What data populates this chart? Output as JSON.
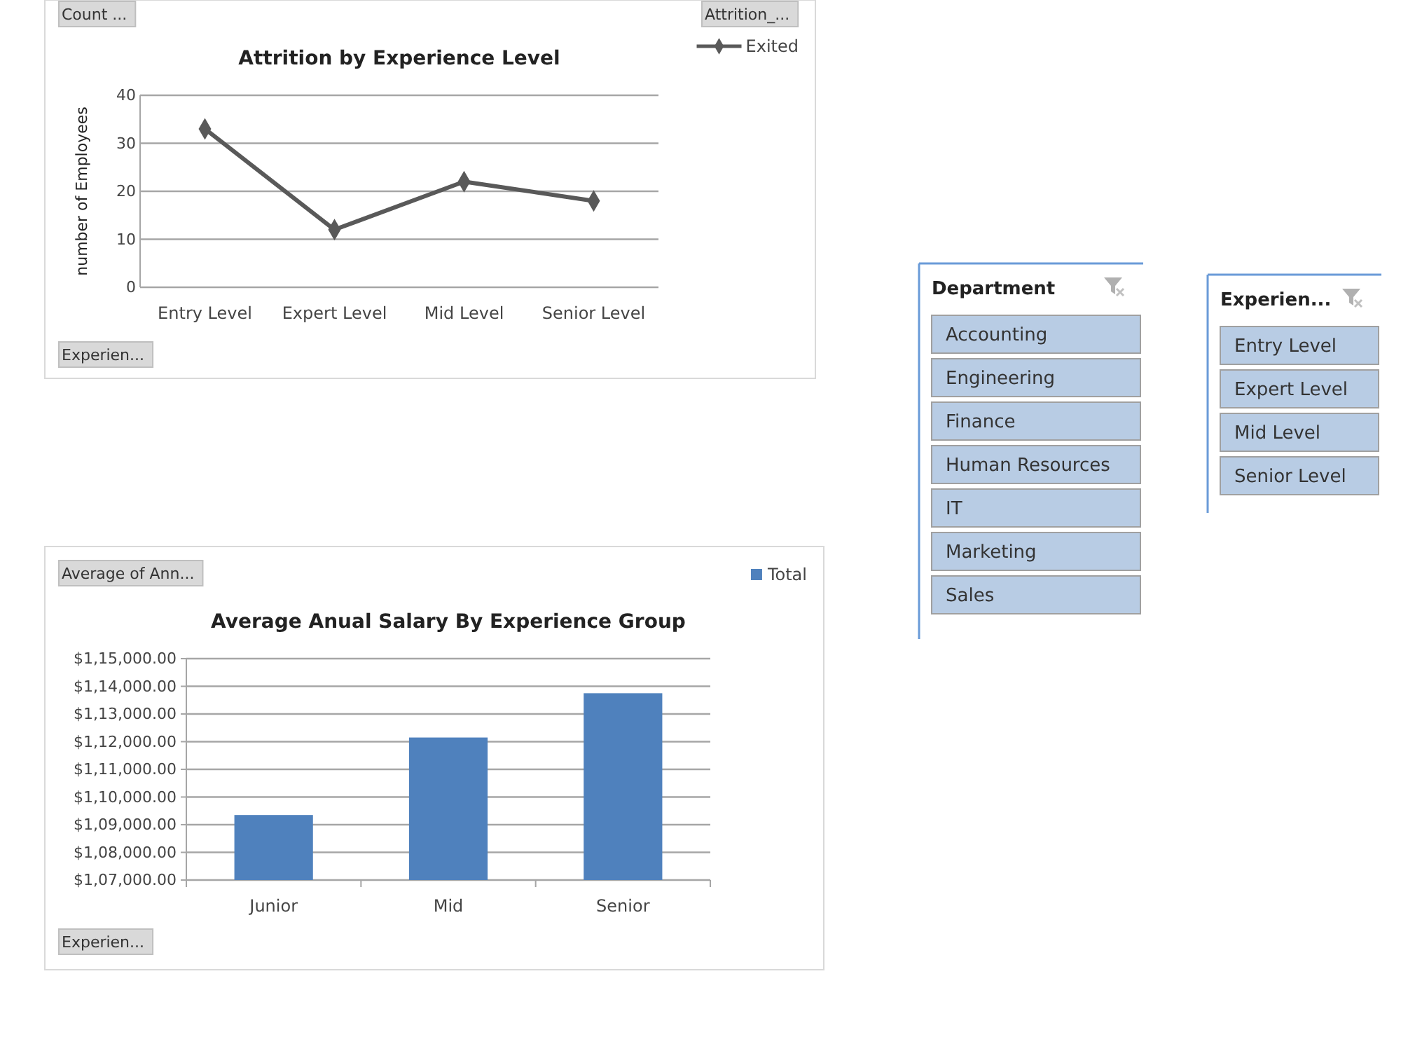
{
  "chart_data": [
    {
      "type": "line",
      "title": "Attrition by Experience Level",
      "ylabel": "number of Employees",
      "categories": [
        "Entry Level",
        "Expert Level",
        "Mid Level",
        "Senior Level"
      ],
      "series": [
        {
          "name": "Exited",
          "color": "#595959",
          "values": [
            33,
            12,
            22,
            18
          ]
        }
      ],
      "ylim": [
        0,
        40
      ],
      "yticks": [
        0,
        10,
        20,
        30,
        40
      ],
      "grid": "y",
      "legend": "top right",
      "marker": "diamond",
      "line_style": "solid",
      "annotations": [
        "Count ...",
        "Attrition_...",
        "Experien..."
      ]
    },
    {
      "type": "bar",
      "title": "Average Anual Salary By Experience Group",
      "categories": [
        "Junior",
        "Mid",
        "Senior"
      ],
      "series": [
        {
          "name": "Total",
          "color": "#4f81bd",
          "values": [
            109350,
            112150,
            113750
          ]
        }
      ],
      "ylim": [
        107000,
        115000
      ],
      "yticks": [
        {
          "value": 107000,
          "label": "$1,07,000.00"
        },
        {
          "value": 108000,
          "label": "$1,08,000.00"
        },
        {
          "value": 109000,
          "label": "$1,09,000.00"
        },
        {
          "value": 110000,
          "label": "$1,10,000.00"
        },
        {
          "value": 111000,
          "label": "$1,11,000.00"
        },
        {
          "value": 112000,
          "label": "$1,12,000.00"
        },
        {
          "value": 113000,
          "label": "$1,13,000.00"
        },
        {
          "value": 114000,
          "label": "$1,14,000.00"
        },
        {
          "value": 115000,
          "label": "$1,15,000.00"
        }
      ],
      "grid": "y",
      "legend": "top right",
      "annotations": [
        "Average of Ann...",
        "Experien..."
      ]
    },
    {
      "type": "other",
      "title": "Department",
      "annotations": [
        "Accounting",
        "Engineering",
        "Finance",
        "Human Resources",
        "IT",
        "Marketing",
        "Sales"
      ]
    },
    {
      "type": "other",
      "title": "Experien...",
      "annotations": [
        "Entry Level",
        "Expert Level",
        "Mid Level",
        "Senior Level"
      ]
    }
  ]
}
